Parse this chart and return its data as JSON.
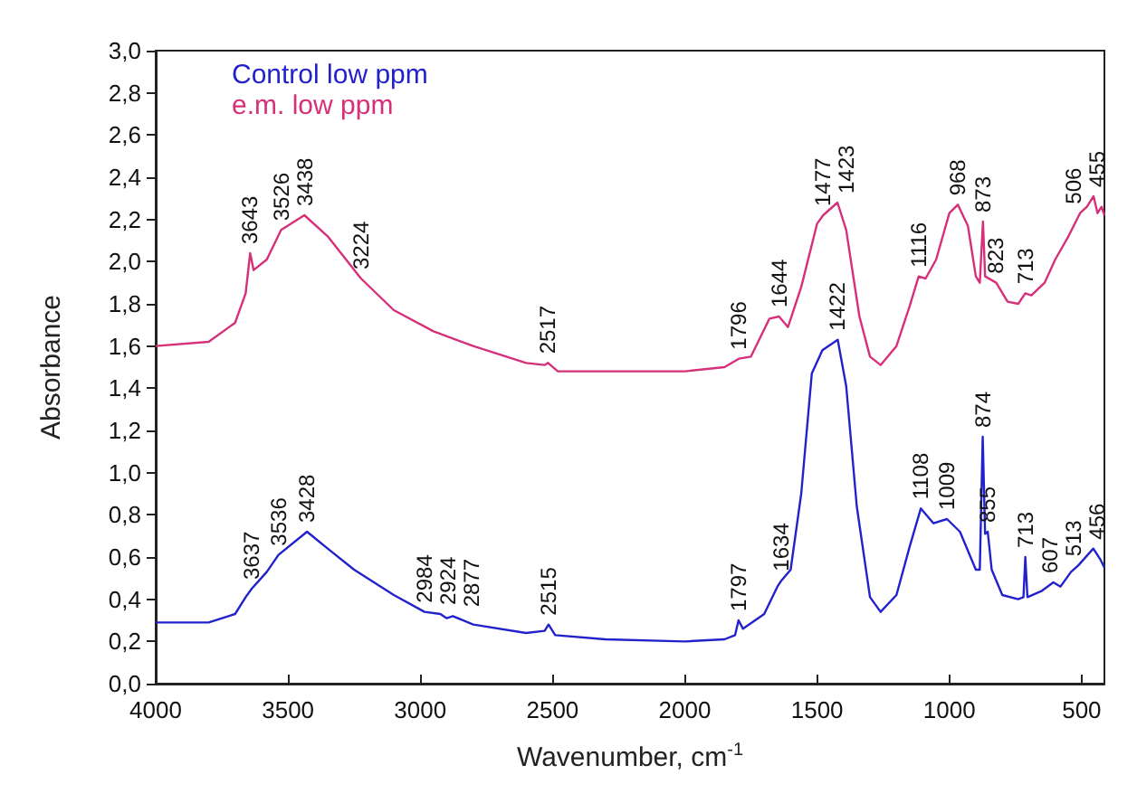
{
  "chart_data": {
    "type": "line",
    "xlabel": "Wavenumber, cm$^{-1}$",
    "ylabel": "Absorbance",
    "xlim": [
      4000,
      414
    ],
    "xticks": [
      4000,
      3500,
      3000,
      2500,
      2000,
      1500,
      1000,
      500
    ],
    "ylim": [
      0,
      3
    ],
    "yticks": [
      {
        "value": 0,
        "label": "0,0"
      },
      {
        "value": 0.2,
        "label": "0,2"
      },
      {
        "value": 0.4,
        "label": "0,4"
      },
      {
        "value": 0.6,
        "label": "0,6"
      },
      {
        "value": 0.8,
        "label": "0,8"
      },
      {
        "value": 1,
        "label": "1,0"
      },
      {
        "value": 1.2,
        "label": "1,2"
      },
      {
        "value": 1.4,
        "label": "1,4"
      },
      {
        "value": 1.6,
        "label": "1,6"
      },
      {
        "value": 1.8,
        "label": "1,8"
      },
      {
        "value": 2,
        "label": "2,0"
      },
      {
        "value": 2.2,
        "label": "2,2"
      },
      {
        "value": 2.4,
        "label": "2,4"
      },
      {
        "value": 2.6,
        "label": "2,6"
      },
      {
        "value": 2.8,
        "label": "2,8"
      },
      {
        "value": 3,
        "label": "3,0"
      }
    ],
    "grid": false,
    "legend": "top left",
    "marker": "none",
    "line_style": "solid",
    "series": [
      {
        "name": "Control low ppm",
        "color": "#2222cc",
        "x": [
          4000,
          3800,
          3700,
          3660,
          3637,
          3580,
          3536,
          3428,
          3350,
          3250,
          3100,
          2984,
          2924,
          2900,
          2877,
          2800,
          2600,
          2530,
          2515,
          2490,
          2300,
          2000,
          1850,
          1810,
          1797,
          1780,
          1700,
          1650,
          1634,
          1600,
          1560,
          1520,
          1480,
          1422,
          1390,
          1350,
          1300,
          1260,
          1200,
          1150,
          1108,
          1060,
          1009,
          960,
          900,
          885,
          874,
          865,
          855,
          840,
          800,
          740,
          720,
          713,
          705,
          650,
          607,
          580,
          540,
          513,
          456,
          430,
          414
        ],
        "values": [
          0.29,
          0.29,
          0.33,
          0.41,
          0.45,
          0.53,
          0.61,
          0.72,
          0.64,
          0.54,
          0.42,
          0.34,
          0.33,
          0.31,
          0.32,
          0.28,
          0.24,
          0.25,
          0.28,
          0.23,
          0.21,
          0.2,
          0.21,
          0.23,
          0.3,
          0.26,
          0.33,
          0.46,
          0.49,
          0.54,
          0.9,
          1.47,
          1.58,
          1.63,
          1.41,
          0.84,
          0.41,
          0.34,
          0.42,
          0.65,
          0.83,
          0.76,
          0.78,
          0.72,
          0.54,
          0.54,
          1.17,
          0.71,
          0.72,
          0.54,
          0.42,
          0.4,
          0.41,
          0.6,
          0.41,
          0.44,
          0.48,
          0.46,
          0.53,
          0.56,
          0.64,
          0.59,
          0.55
        ]
      },
      {
        "name": "e.m. low ppm",
        "color": "#d6307a",
        "x": [
          4000,
          3800,
          3700,
          3660,
          3643,
          3630,
          3580,
          3526,
          3438,
          3350,
          3224,
          3100,
          2950,
          2800,
          2600,
          2530,
          2517,
          2480,
          2300,
          2000,
          1850,
          1796,
          1750,
          1680,
          1644,
          1610,
          1560,
          1500,
          1477,
          1423,
          1390,
          1340,
          1300,
          1260,
          1200,
          1150,
          1116,
          1090,
          1050,
          1000,
          968,
          930,
          900,
          885,
          873,
          865,
          823,
          780,
          740,
          713,
          690,
          640,
          600,
          550,
          506,
          480,
          455,
          440,
          425,
          414
        ],
        "values": [
          1.6,
          1.62,
          1.71,
          1.85,
          2.04,
          1.96,
          2.01,
          2.15,
          2.22,
          2.12,
          1.92,
          1.77,
          1.67,
          1.6,
          1.52,
          1.51,
          1.52,
          1.48,
          1.48,
          1.48,
          1.5,
          1.54,
          1.55,
          1.73,
          1.74,
          1.69,
          1.88,
          2.18,
          2.22,
          2.28,
          2.15,
          1.74,
          1.55,
          1.51,
          1.6,
          1.79,
          1.93,
          1.92,
          2.01,
          2.23,
          2.27,
          2.17,
          1.93,
          1.9,
          2.19,
          1.93,
          1.9,
          1.81,
          1.8,
          1.85,
          1.84,
          1.9,
          2.01,
          2.12,
          2.23,
          2.26,
          2.31,
          2.23,
          2.26,
          2.22
        ]
      }
    ],
    "annotations": [
      {
        "text": "3637",
        "x": 3637,
        "y": 0.45
      },
      {
        "text": "3536",
        "x": 3536,
        "y": 0.61
      },
      {
        "text": "3428",
        "x": 3428,
        "y": 0.72
      },
      {
        "text": "2984",
        "x": 2984,
        "y": 0.34
      },
      {
        "text": "2924",
        "x": 2924,
        "y": 0.33
      },
      {
        "text": "2877",
        "x": 2877,
        "y": 0.32
      },
      {
        "text": "2515",
        "x": 2515,
        "y": 0.28
      },
      {
        "text": "1797",
        "x": 1797,
        "y": 0.3
      },
      {
        "text": "1634",
        "x": 1634,
        "y": 0.49
      },
      {
        "text": "1422",
        "x": 1422,
        "y": 1.63
      },
      {
        "text": "1108",
        "x": 1108,
        "y": 0.83
      },
      {
        "text": "1009",
        "x": 1009,
        "y": 0.78
      },
      {
        "text": "874",
        "x": 874,
        "y": 1.17
      },
      {
        "text": "855",
        "x": 855,
        "y": 0.72
      },
      {
        "text": "713",
        "x": 713,
        "y": 0.6
      },
      {
        "text": "607",
        "x": 607,
        "y": 0.48
      },
      {
        "text": "513",
        "x": 513,
        "y": 0.56
      },
      {
        "text": "456",
        "x": 456,
        "y": 0.64
      },
      {
        "text": "3643",
        "x": 3643,
        "y": 2.04
      },
      {
        "text": "3526",
        "x": 3526,
        "y": 2.15
      },
      {
        "text": "3438",
        "x": 3438,
        "y": 2.22
      },
      {
        "text": "3224",
        "x": 3224,
        "y": 1.92
      },
      {
        "text": "2517",
        "x": 2517,
        "y": 1.52
      },
      {
        "text": "1796",
        "x": 1796,
        "y": 1.54
      },
      {
        "text": "1644",
        "x": 1644,
        "y": 1.74
      },
      {
        "text": "1477",
        "x": 1477,
        "y": 2.22
      },
      {
        "text": "1423",
        "x": 1423,
        "y": 2.28
      },
      {
        "text": "1116",
        "x": 1116,
        "y": 1.93
      },
      {
        "text": "968",
        "x": 968,
        "y": 2.27
      },
      {
        "text": "873",
        "x": 873,
        "y": 2.19
      },
      {
        "text": "823",
        "x": 823,
        "y": 1.9
      },
      {
        "text": "713",
        "x": 713,
        "y": 1.85
      },
      {
        "text": "506",
        "x": 506,
        "y": 2.23
      },
      {
        "text": "455",
        "x": 455,
        "y": 2.31
      }
    ]
  }
}
